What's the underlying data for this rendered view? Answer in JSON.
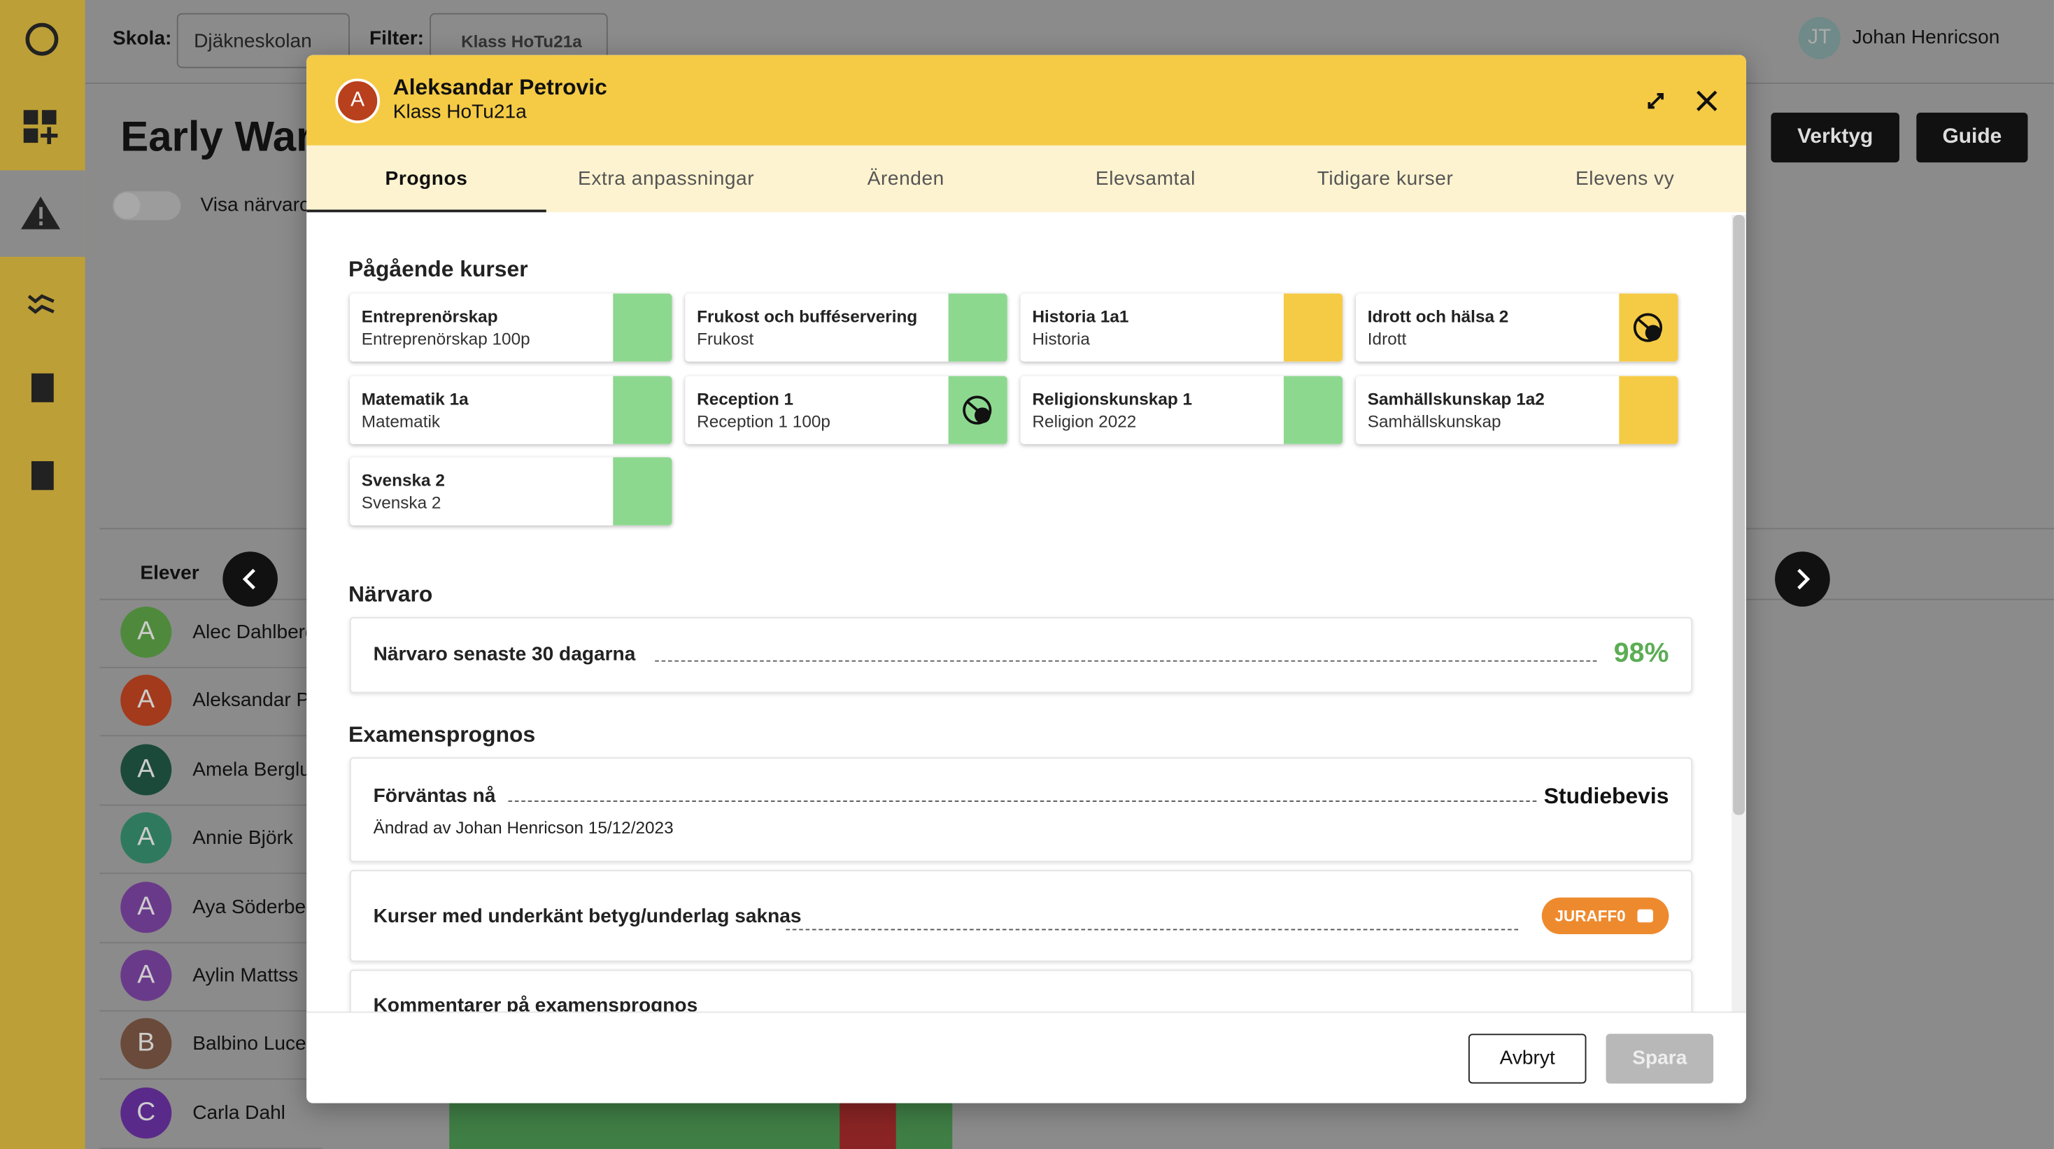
{
  "header": {
    "school_label": "Skola:",
    "school": "Djäkneskolan",
    "filter_label": "Filter:",
    "filter": "Klass HoTu21a",
    "user_initials": "JT",
    "user": "Johan Henricson"
  },
  "page": {
    "title": "Early Warr",
    "toggle_label": "Visa närvarc",
    "buttons": [
      "Verktyg",
      "Guide"
    ],
    "list_header": "Elever",
    "students": [
      {
        "initial": "A",
        "name": "Alec Dahlberg",
        "color": "#4f8a3c"
      },
      {
        "initial": "A",
        "name": "Aleksandar P",
        "color": "#a33a1c"
      },
      {
        "initial": "A",
        "name": "Amela Berglu",
        "color": "#1c4a3a"
      },
      {
        "initial": "A",
        "name": "Annie Björk",
        "color": "#2f7a5e"
      },
      {
        "initial": "A",
        "name": "Aya Söderber",
        "color": "#6a3a8a"
      },
      {
        "initial": "A",
        "name": "Aylin Mattss",
        "color": "#6a3a8a"
      },
      {
        "initial": "B",
        "name": "Balbino Lucer",
        "color": "#6a4a3a"
      },
      {
        "initial": "C",
        "name": "Carla Dahl",
        "color": "#5a2a8a"
      }
    ]
  },
  "modal": {
    "avatar": "A",
    "name": "Aleksandar Petrovic",
    "class": "Klass HoTu21a",
    "tabs": [
      "Prognos",
      "Extra anpassningar",
      "Ärenden",
      "Elevsamtal",
      "Tidigare kurser",
      "Elevens vy"
    ],
    "courses_title": "Pågående kurser",
    "courses": [
      {
        "name": "Entreprenörskap",
        "sub": "Entreprenörskap 100p",
        "status": "green"
      },
      {
        "name": "Frukost och bufféservering",
        "sub": "Frukost",
        "status": "green"
      },
      {
        "name": "Historia 1a1",
        "sub": "Historia",
        "status": "yellow"
      },
      {
        "name": "Idrott och hälsa 2",
        "sub": "Idrott",
        "status": "yellow-icon"
      },
      {
        "name": "Matematik 1a",
        "sub": "Matematik",
        "status": "green"
      },
      {
        "name": "Reception 1",
        "sub": "Reception 1 100p",
        "status": "green-icon"
      },
      {
        "name": "Religionskunskap 1",
        "sub": "Religion 2022",
        "status": "green"
      },
      {
        "name": "Samhällskunskap 1a2",
        "sub": "Samhällskunskap",
        "status": "yellow"
      },
      {
        "name": "Svenska 2",
        "sub": "Svenska 2",
        "status": "green"
      }
    ],
    "attendance_title": "Närvaro",
    "attendance_label": "Närvaro senaste 30 dagarna",
    "attendance_value": "98%",
    "exam_title": "Examensprognos",
    "exam_label": "Förväntas nå",
    "exam_value": "Studiebevis",
    "exam_note": "Ändrad av Johan Henricson 15/12/2023",
    "failed_label": "Kurser med underkänt betyg/underlag saknas",
    "failed_badge": "JURAFF0",
    "comments_label": "Kommentarer på examensprognos",
    "cancel": "Avbryt",
    "save": "Spara"
  }
}
